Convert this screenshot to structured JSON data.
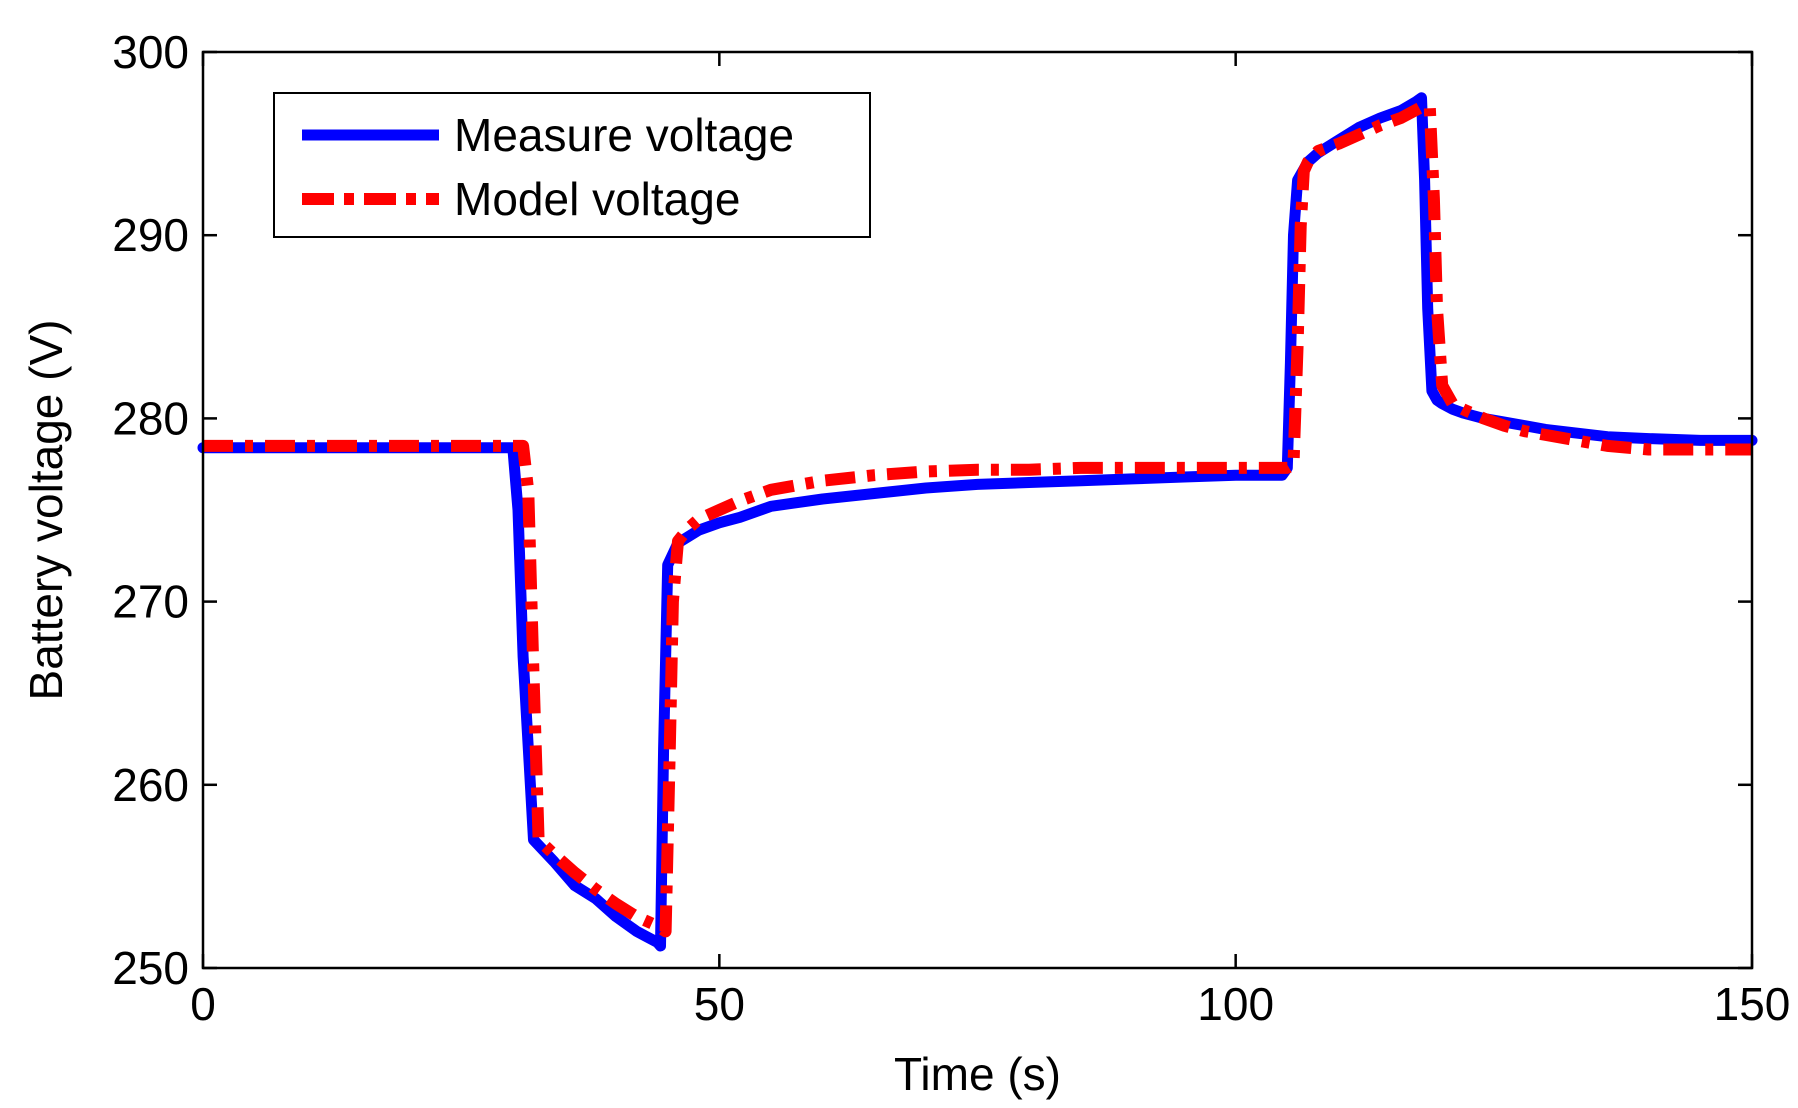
{
  "chart_data": {
    "type": "line",
    "title": "",
    "xlabel": "Time (s)",
    "ylabel": "Battery voltage (V)",
    "xlim": [
      0,
      150
    ],
    "ylim": [
      250,
      300
    ],
    "xticks": [
      0,
      50,
      100,
      150
    ],
    "yticks": [
      250,
      260,
      270,
      280,
      290,
      300
    ],
    "grid": false,
    "legend_position": "top-left",
    "series": [
      {
        "name": "Measure voltage",
        "color": "#0000ff",
        "style": "solid",
        "x": [
          0,
          29.5,
          30,
          30.5,
          31,
          32,
          34,
          36,
          38,
          40,
          42,
          43,
          44,
          44.3,
          44.6,
          45,
          46,
          48,
          50,
          52,
          55,
          60,
          65,
          70,
          75,
          80,
          85,
          90,
          95,
          100,
          104.5,
          105,
          105.3,
          105.6,
          106,
          107,
          108,
          110,
          112,
          114,
          116,
          117.5,
          118,
          118.3,
          118.6,
          119,
          119.5,
          120,
          121,
          122,
          124,
          126,
          128,
          130,
          133,
          136,
          140,
          145,
          150
        ],
        "y": [
          278.4,
          278.4,
          278.4,
          275.0,
          267.0,
          257.0,
          255.8,
          254.5,
          253.8,
          252.8,
          252.0,
          251.7,
          251.4,
          251.2,
          262.0,
          272.0,
          273.2,
          273.9,
          274.3,
          274.6,
          275.2,
          275.6,
          275.9,
          276.2,
          276.4,
          276.5,
          276.6,
          276.7,
          276.8,
          276.9,
          276.9,
          277.3,
          283.0,
          290.0,
          293.0,
          294.0,
          294.5,
          295.2,
          295.9,
          296.4,
          296.8,
          297.3,
          297.5,
          293.0,
          286.0,
          281.5,
          281.0,
          280.8,
          280.5,
          280.3,
          280.0,
          279.8,
          279.6,
          279.4,
          279.2,
          279.0,
          278.9,
          278.8,
          278.8
        ]
      },
      {
        "name": "Model voltage",
        "color": "#ff0000",
        "style": "dashdot",
        "x": [
          0,
          30.5,
          31,
          31.5,
          32,
          32.5,
          34,
          36,
          38,
          40,
          42,
          44,
          44.8,
          45.2,
          45.5,
          46,
          47,
          48,
          50,
          52,
          55,
          60,
          65,
          70,
          75,
          80,
          85,
          90,
          95,
          100,
          105,
          105.6,
          106,
          106.3,
          106.6,
          107,
          108,
          110,
          112,
          114,
          116,
          118,
          118.8,
          119.2,
          119.5,
          120,
          121,
          122,
          124,
          126,
          128,
          130,
          133,
          136,
          140,
          145,
          150
        ],
        "y": [
          278.5,
          278.5,
          278.5,
          276.0,
          266.0,
          257.0,
          256.2,
          255.2,
          254.3,
          253.5,
          252.8,
          252.3,
          252.0,
          262.0,
          270.0,
          273.3,
          274.0,
          274.5,
          275.0,
          275.5,
          276.1,
          276.6,
          276.9,
          277.1,
          277.2,
          277.2,
          277.3,
          277.3,
          277.3,
          277.3,
          277.3,
          277.5,
          284.0,
          290.5,
          293.5,
          294.0,
          294.6,
          295.0,
          295.5,
          296.0,
          296.4,
          297.0,
          297.0,
          292.0,
          286.0,
          281.8,
          280.8,
          280.5,
          280.0,
          279.6,
          279.3,
          279.1,
          278.8,
          278.5,
          278.3,
          278.3,
          278.3
        ]
      }
    ]
  }
}
